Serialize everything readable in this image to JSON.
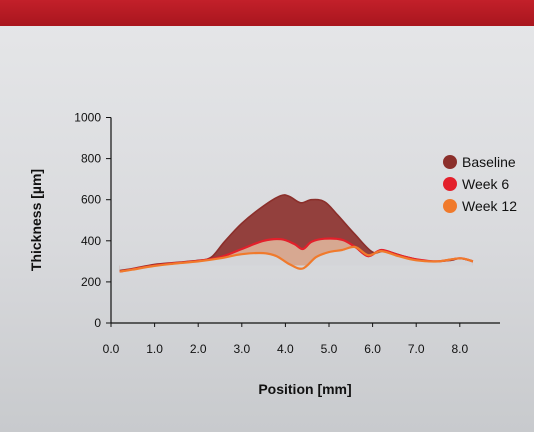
{
  "chart_data": {
    "type": "area",
    "xlabel": "Position [mm]",
    "ylabel": "Thickness [µm]",
    "xlim": [
      0.0,
      9.0
    ],
    "ylim": [
      0,
      1000
    ],
    "x_ticks": [
      "0.0",
      "1.0",
      "2.0",
      "3.0",
      "4.0",
      "5.0",
      "6.0",
      "7.0",
      "8.0"
    ],
    "y_ticks": [
      "0",
      "200",
      "400",
      "600",
      "800",
      "1000"
    ],
    "legend_position": "right",
    "grid": false,
    "series": [
      {
        "name": "Baseline",
        "color": "#8b2f2b",
        "x": [
          0.2,
          0.5,
          1.0,
          1.5,
          2.0,
          2.3,
          2.6,
          3.0,
          3.5,
          3.9,
          4.1,
          4.35,
          4.6,
          4.9,
          5.2,
          5.6,
          6.0,
          6.3,
          6.8,
          7.3,
          7.8,
          8.0,
          8.3
        ],
        "y": [
          255,
          265,
          285,
          295,
          305,
          320,
          395,
          485,
          570,
          620,
          615,
          585,
          600,
          590,
          525,
          430,
          345,
          350,
          320,
          300,
          305,
          315,
          300
        ]
      },
      {
        "name": "Week 6",
        "color": "#e3202b",
        "x": [
          0.2,
          0.5,
          1.0,
          1.5,
          2.0,
          2.5,
          3.0,
          3.5,
          3.9,
          4.2,
          4.4,
          4.6,
          4.9,
          5.3,
          5.6,
          5.9,
          6.2,
          6.6,
          7.0,
          7.5,
          8.0,
          8.3
        ],
        "y": [
          250,
          262,
          280,
          292,
          302,
          320,
          360,
          400,
          408,
          385,
          360,
          395,
          410,
          405,
          370,
          325,
          355,
          330,
          310,
          300,
          315,
          300
        ]
      },
      {
        "name": "Week 12",
        "color": "#f07a2c",
        "x": [
          0.2,
          0.5,
          1.0,
          1.5,
          2.0,
          2.5,
          3.0,
          3.5,
          3.8,
          4.1,
          4.4,
          4.7,
          5.0,
          5.3,
          5.6,
          5.9,
          6.2,
          6.6,
          7.0,
          7.5,
          8.0,
          8.3
        ],
        "y": [
          250,
          260,
          278,
          290,
          300,
          315,
          335,
          340,
          325,
          285,
          265,
          320,
          345,
          355,
          370,
          330,
          350,
          325,
          305,
          300,
          315,
          300
        ]
      }
    ]
  }
}
